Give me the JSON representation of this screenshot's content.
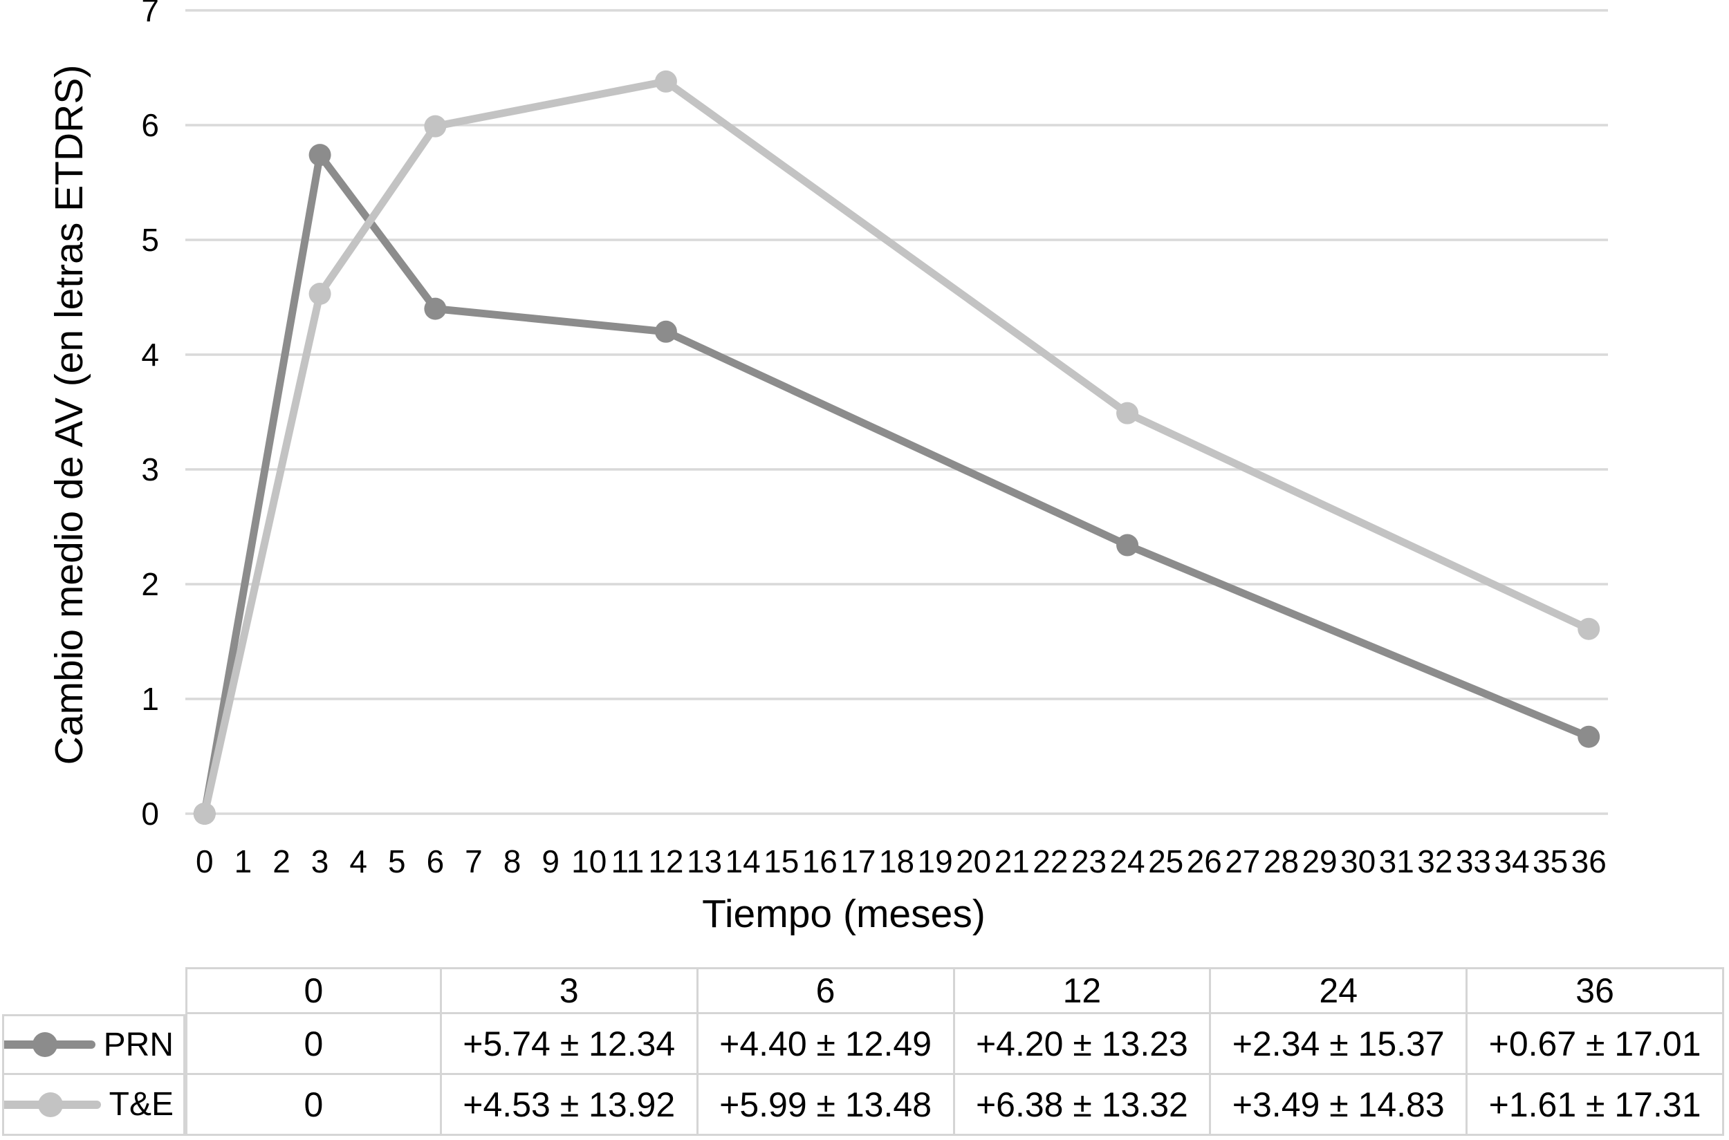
{
  "chart_data": {
    "type": "line",
    "title": "",
    "xlabel": "Tiempo (meses)",
    "ylabel": "Cambio medio de AV (en letras ETDRS)",
    "x_tick_labels": [
      "0",
      "1",
      "2",
      "3",
      "4",
      "5",
      "6",
      "7",
      "8",
      "9",
      "10",
      "11",
      "12",
      "13",
      "14",
      "15",
      "16",
      "17",
      "18",
      "19",
      "20",
      "21",
      "22",
      "23",
      "24",
      "25",
      "26",
      "27",
      "28",
      "29",
      "30",
      "31",
      "32",
      "33",
      "34",
      "35",
      "36"
    ],
    "y_ticks": [
      0,
      1,
      2,
      3,
      4,
      5,
      6,
      7
    ],
    "ylim": [
      0,
      7
    ],
    "xlim_months": [
      0,
      36
    ],
    "grid_on": true,
    "grid_color": "#d9d9d9",
    "legend_position": "table-left",
    "series": [
      {
        "name": "PRN",
        "color": "#8c8c8c",
        "x": [
          0,
          3,
          6,
          12,
          24,
          36
        ],
        "values": [
          0,
          5.74,
          4.4,
          4.2,
          2.34,
          0.67
        ]
      },
      {
        "name": "T&E",
        "color": "#c3c3c3",
        "x": [
          0,
          3,
          6,
          12,
          24,
          36
        ],
        "values": [
          0,
          4.53,
          5.99,
          6.38,
          3.49,
          1.61
        ]
      }
    ]
  },
  "table": {
    "columns": [
      "0",
      "3",
      "6",
      "12",
      "24",
      "36"
    ],
    "rows": [
      {
        "label": "PRN",
        "color": "#8c8c8c",
        "values": [
          "0",
          "+5.74 ± 12.34",
          "+4.40 ± 12.49",
          "+4.20 ± 13.23",
          "+2.34 ± 15.37",
          "+0.67 ± 17.01"
        ]
      },
      {
        "label": "T&E",
        "color": "#c3c3c3",
        "values": [
          "0",
          "+4.53 ± 13.92",
          "+5.99 ± 13.48",
          "+6.38 ± 13.32",
          "+3.49 ± 14.83",
          "+1.61 ± 17.31"
        ]
      }
    ]
  }
}
